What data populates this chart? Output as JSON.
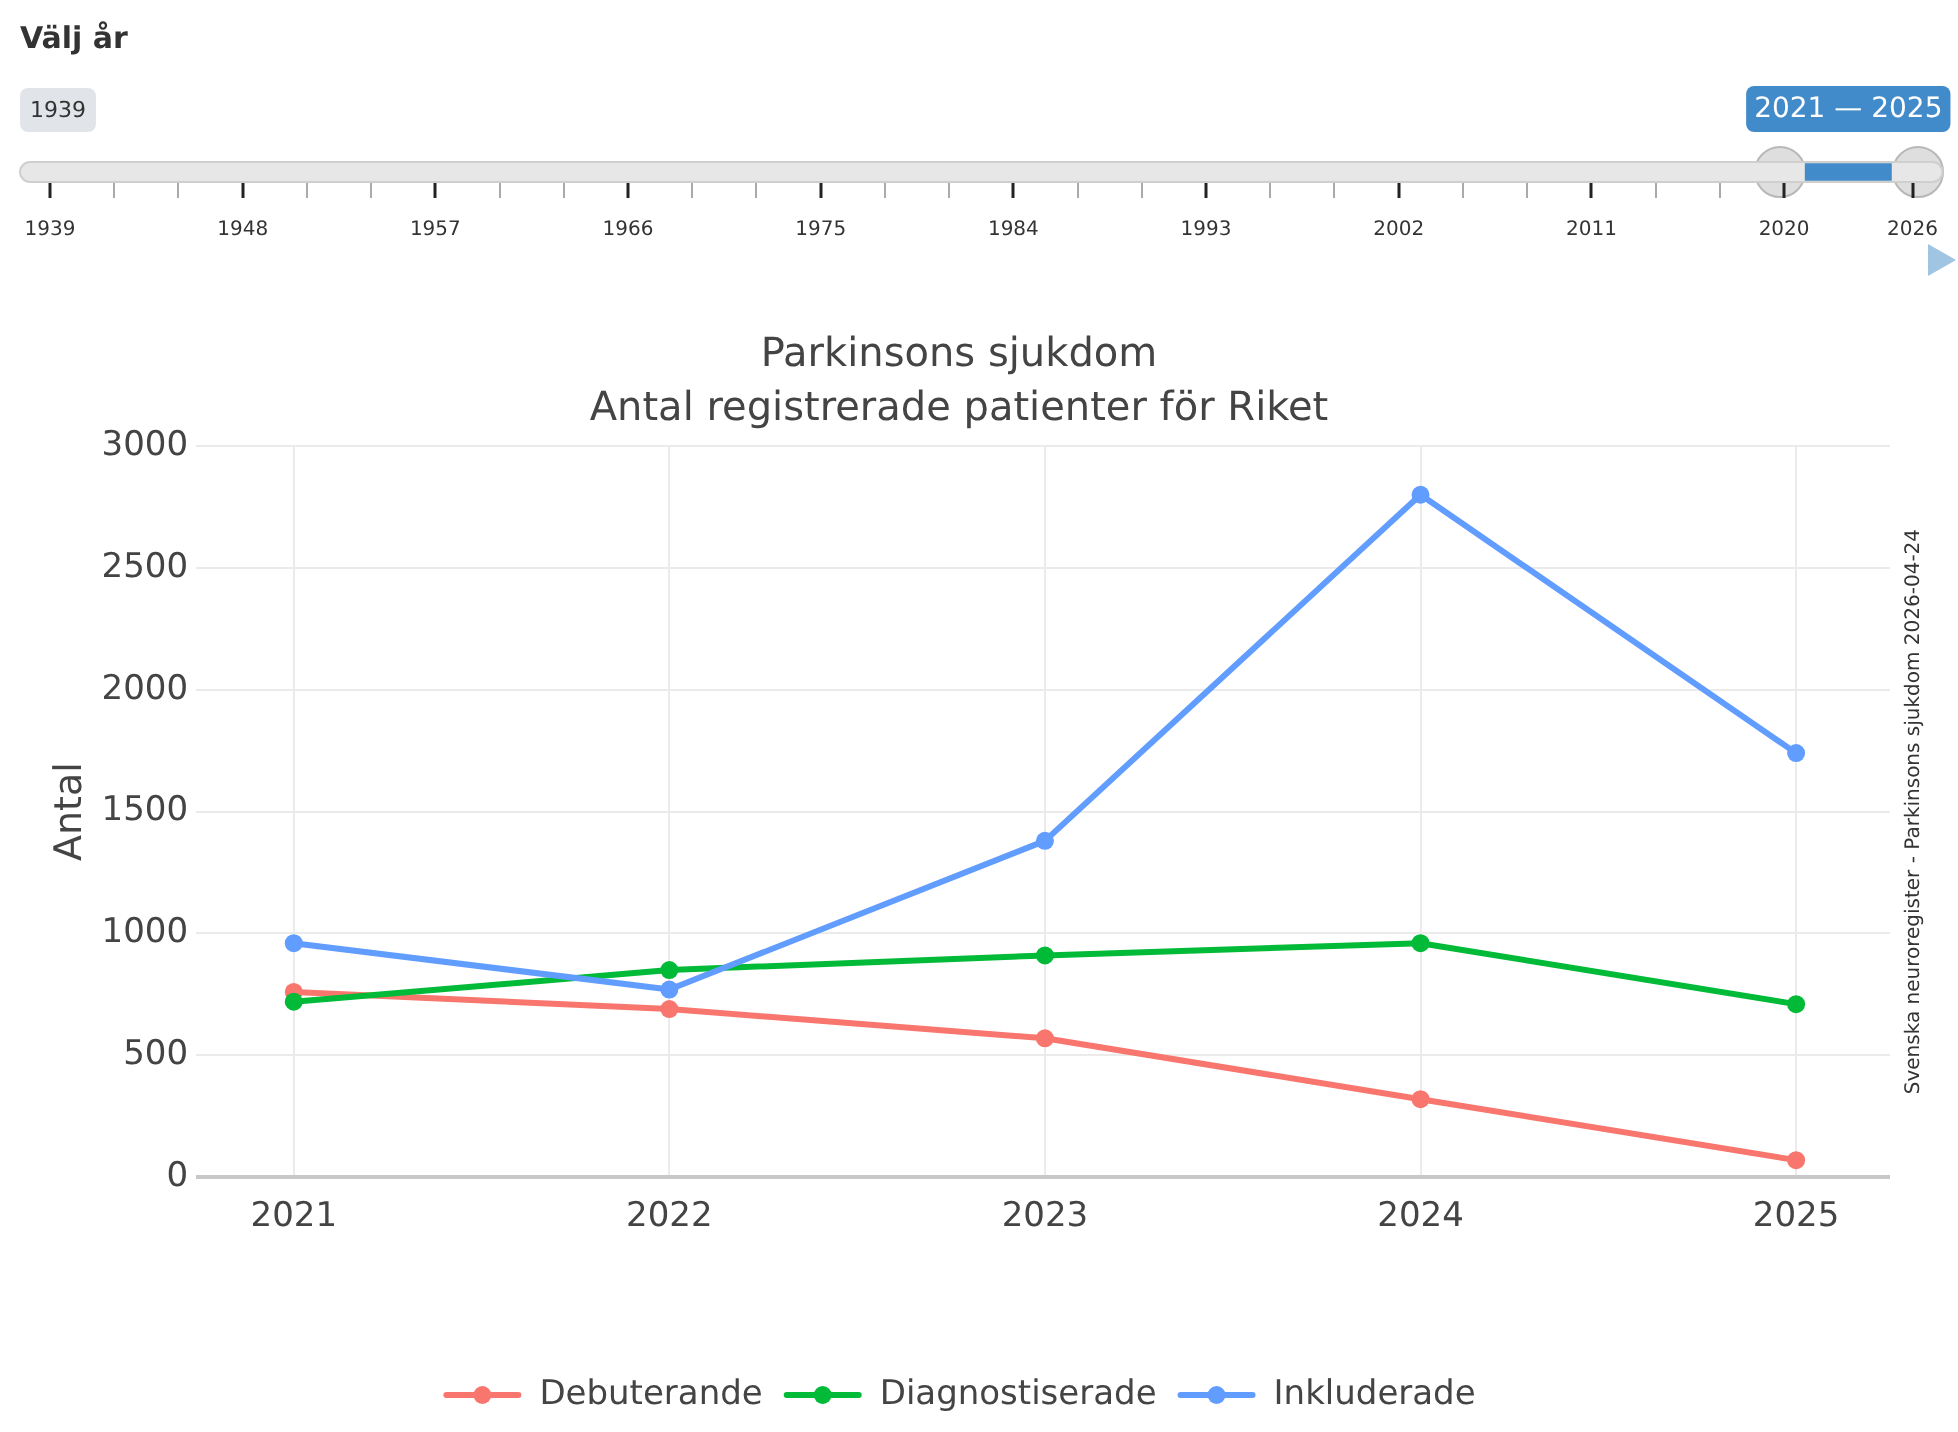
{
  "chart_data": [
    {
      "type": "bar",
      "orientation": "horizontal",
      "title": "Välj år",
      "categories": [
        "2021 — 2025"
      ],
      "values": [
        4
      ],
      "base": [
        2021
      ],
      "color": "#428bca",
      "annotations": [
        "1939"
      ],
      "xlim": [
        1937.6,
        2027.4
      ],
      "xticks": [
        1939,
        {
          "value": 1942,
          "label": null
        },
        {
          "value": 1945,
          "label": null
        },
        1948,
        {
          "value": 1951,
          "label": null
        },
        {
          "value": 1954,
          "label": null
        },
        1957,
        {
          "value": 1960,
          "label": null
        },
        {
          "value": 1963,
          "label": null
        },
        1966,
        {
          "value": 1969,
          "label": null
        },
        {
          "value": 1972,
          "label": null
        },
        1975,
        {
          "value": 1978,
          "label": null
        },
        {
          "value": 1981,
          "label": null
        },
        1984,
        {
          "value": 1987,
          "label": null
        },
        {
          "value": 1990,
          "label": null
        },
        1993,
        {
          "value": 1996,
          "label": null
        },
        {
          "value": 1999,
          "label": null
        },
        2002,
        {
          "value": 2005,
          "label": null
        },
        {
          "value": 2008,
          "label": null
        },
        2011,
        {
          "value": 2014,
          "label": null
        },
        {
          "value": 2017,
          "label": null
        },
        2020,
        2026
      ]
    },
    {
      "type": "line",
      "title": "Parkinsons sjukdom",
      "subtitle": "Antal registrerade patienter för Riket",
      "ylabel": "Antal",
      "x": [
        2021,
        2022,
        2023,
        2024,
        2025
      ],
      "xlim": [
        2020.74,
        2025.25
      ],
      "xticks": [
        2021,
        2022,
        2023,
        2024,
        2025
      ],
      "ylim": [
        0,
        3000
      ],
      "yticks": [
        0,
        500,
        1000,
        1500,
        2000,
        2500,
        3000
      ],
      "series": [
        {
          "name": "Debuterande",
          "color": "#f8766d",
          "values": [
            760,
            690,
            570,
            320,
            70
          ]
        },
        {
          "name": "Diagnostiserade",
          "color": "#00ba38",
          "values": [
            720,
            850,
            910,
            960,
            710
          ]
        },
        {
          "name": "Inkluderade",
          "color": "#619cff",
          "values": [
            960,
            770,
            1380,
            2800,
            1740
          ]
        }
      ],
      "marker": "circle",
      "line_style": "solid",
      "grid": true,
      "legend": "bottom",
      "annotations": [
        "Svenska neuroregister - Parkinsons sjukdom 2026-04-24"
      ]
    }
  ]
}
